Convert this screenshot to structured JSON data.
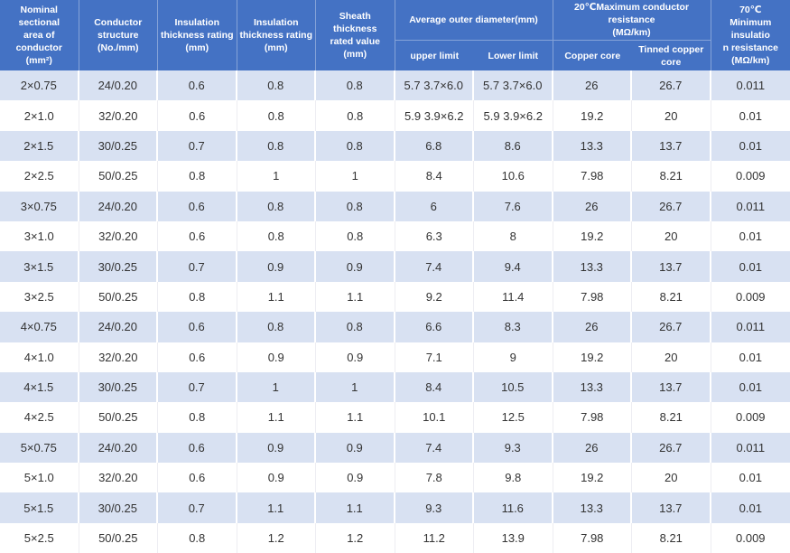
{
  "colors": {
    "header_bg": "#4472C4",
    "header_text": "#FFFFFF",
    "row_alt_bg": "#D8E1F2",
    "row_bg": "#FFFFFF",
    "data_text": "#333333"
  },
  "table": {
    "header": {
      "nominal_area": "Nominal sectional\narea of conductor\n(mm²)",
      "conductor_structure": "Conductor\nstructure\n(No./mm)",
      "insulation_thickness_1": "Insulation\nthickness rating\n(mm)",
      "insulation_thickness_2": "Insulation\nthickness rating\n(mm)",
      "sheath_thickness": "Sheath thickness\nrated value\n(mm)",
      "avg_outer_diameter": "Average outer diameter(mm)",
      "max_conductor_resistance": "20℃Maximum conductor resistance\n(MΩ/km)",
      "min_insulation_resistance": "70℃\nMinimum insulatio\nn resistance\n(MΩ/km)",
      "upper_limit": "upper limit",
      "lower_limit": "Lower limit",
      "copper_core": "Copper core",
      "tinned_copper_core": "Tinned copper\ncore"
    },
    "rows": [
      [
        "2×0.75",
        "24/0.20",
        "0.6",
        "0.8",
        "0.8",
        "5.7 3.7×6.0",
        "5.7 3.7×6.0",
        "26",
        "26.7",
        "0.011"
      ],
      [
        "2×1.0",
        "32/0.20",
        "0.6",
        "0.8",
        "0.8",
        "5.9 3.9×6.2",
        "5.9 3.9×6.2",
        "19.2",
        "20",
        "0.01"
      ],
      [
        "2×1.5",
        "30/0.25",
        "0.7",
        "0.8",
        "0.8",
        "6.8",
        "8.6",
        "13.3",
        "13.7",
        "0.01"
      ],
      [
        "2×2.5",
        "50/0.25",
        "0.8",
        "1",
        "1",
        "8.4",
        "10.6",
        "7.98",
        "8.21",
        "0.009"
      ],
      [
        "3×0.75",
        "24/0.20",
        "0.6",
        "0.8",
        "0.8",
        "6",
        "7.6",
        "26",
        "26.7",
        "0.011"
      ],
      [
        "3×1.0",
        "32/0.20",
        "0.6",
        "0.8",
        "0.8",
        "6.3",
        "8",
        "19.2",
        "20",
        "0.01"
      ],
      [
        "3×1.5",
        "30/0.25",
        "0.7",
        "0.9",
        "0.9",
        "7.4",
        "9.4",
        "13.3",
        "13.7",
        "0.01"
      ],
      [
        "3×2.5",
        "50/0.25",
        "0.8",
        "1.1",
        "1.1",
        "9.2",
        "11.4",
        "7.98",
        "8.21",
        "0.009"
      ],
      [
        "4×0.75",
        "24/0.20",
        "0.6",
        "0.8",
        "0.8",
        "6.6",
        "8.3",
        "26",
        "26.7",
        "0.011"
      ],
      [
        "4×1.0",
        "32/0.20",
        "0.6",
        "0.9",
        "0.9",
        "7.1",
        "9",
        "19.2",
        "20",
        "0.01"
      ],
      [
        "4×1.5",
        "30/0.25",
        "0.7",
        "1",
        "1",
        "8.4",
        "10.5",
        "13.3",
        "13.7",
        "0.01"
      ],
      [
        "4×2.5",
        "50/0.25",
        "0.8",
        "1.1",
        "1.1",
        "10.1",
        "12.5",
        "7.98",
        "8.21",
        "0.009"
      ],
      [
        "5×0.75",
        "24/0.20",
        "0.6",
        "0.9",
        "0.9",
        "7.4",
        "9.3",
        "26",
        "26.7",
        "0.011"
      ],
      [
        "5×1.0",
        "32/0.20",
        "0.6",
        "0.9",
        "0.9",
        "7.8",
        "9.8",
        "19.2",
        "20",
        "0.01"
      ],
      [
        "5×1.5",
        "30/0.25",
        "0.7",
        "1.1",
        "1.1",
        "9.3",
        "11.6",
        "13.3",
        "13.7",
        "0.01"
      ],
      [
        "5×2.5",
        "50/0.25",
        "0.8",
        "1.2",
        "1.2",
        "11.2",
        "13.9",
        "7.98",
        "8.21",
        "0.009"
      ]
    ]
  }
}
